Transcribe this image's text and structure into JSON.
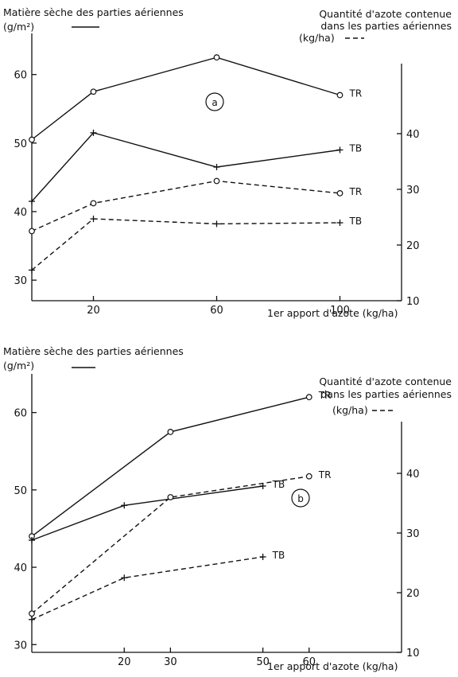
{
  "chart_data": [
    {
      "type": "line",
      "panel_label": "a",
      "left_axis_title": "Matière sèche des parties aériennes",
      "left_axis_unit": "(g/m²)",
      "right_axis_title_line1": "Quantité d'azote contenue",
      "right_axis_title_line2": "dans les parties aériennes",
      "right_axis_unit": "(kg/ha)",
      "xlabel": "1er apport d'azote (kg/ha)",
      "x_ticks": [
        20,
        60,
        100
      ],
      "left_ticks": [
        30,
        40,
        50,
        60
      ],
      "right_ticks": [
        10,
        20,
        30,
        40
      ],
      "xlim": [
        0,
        120
      ],
      "left_ylim": [
        27,
        66
      ],
      "right_ylim": [
        10,
        50
      ],
      "series": [
        {
          "name": "TR",
          "style": "solid",
          "marker": "circle",
          "axis": "left",
          "x": [
            0,
            20,
            60,
            100
          ],
          "y": [
            50.5,
            57.5,
            62.5,
            57
          ]
        },
        {
          "name": "TB",
          "style": "solid",
          "marker": "plus",
          "axis": "left",
          "x": [
            0,
            20,
            60,
            100
          ],
          "y": [
            41.5,
            51.5,
            46.5,
            49
          ]
        },
        {
          "name": "TR",
          "style": "dashed",
          "marker": "circle",
          "axis": "right",
          "x": [
            0,
            20,
            60,
            100
          ],
          "y": [
            22.5,
            27.5,
            31.5,
            29.3
          ]
        },
        {
          "name": "TB",
          "style": "dashed",
          "marker": "plus",
          "axis": "right",
          "x": [
            0,
            20,
            60,
            100
          ],
          "y": [
            15.5,
            24.7,
            23.8,
            24
          ]
        }
      ]
    },
    {
      "type": "line",
      "panel_label": "b",
      "left_axis_title": "Matière sèche des parties aériennes",
      "left_axis_unit": "(g/m²)",
      "right_axis_title_line1": "Quantité d'azote contenue",
      "right_axis_title_line2": "dans les parties aériennes",
      "right_axis_unit": "(kg/ha)",
      "xlabel": "1er apport d'azote (kg/ha)",
      "x_ticks": [
        20,
        30,
        50,
        60
      ],
      "left_ticks": [
        30,
        40,
        50,
        60
      ],
      "right_ticks": [
        10,
        20,
        30,
        40
      ],
      "xlim": [
        0,
        80
      ],
      "left_ylim": [
        29,
        65
      ],
      "right_ylim": [
        10,
        50
      ],
      "series": [
        {
          "name": "TR",
          "style": "solid",
          "marker": "circle",
          "axis": "left",
          "x": [
            0,
            30,
            60
          ],
          "y": [
            44,
            57.5,
            62
          ]
        },
        {
          "name": "TB",
          "style": "solid",
          "marker": "plus",
          "axis": "left",
          "x": [
            0,
            20,
            50
          ],
          "y": [
            43.5,
            48,
            50.5
          ]
        },
        {
          "name": "TR",
          "style": "dashed",
          "marker": "circle",
          "axis": "right",
          "x": [
            0,
            30,
            60
          ],
          "y": [
            16.5,
            36,
            39.5
          ]
        },
        {
          "name": "TB",
          "style": "dashed",
          "marker": "plus",
          "axis": "right",
          "x": [
            0,
            20,
            50
          ],
          "y": [
            15.5,
            22.5,
            26
          ]
        }
      ]
    }
  ]
}
